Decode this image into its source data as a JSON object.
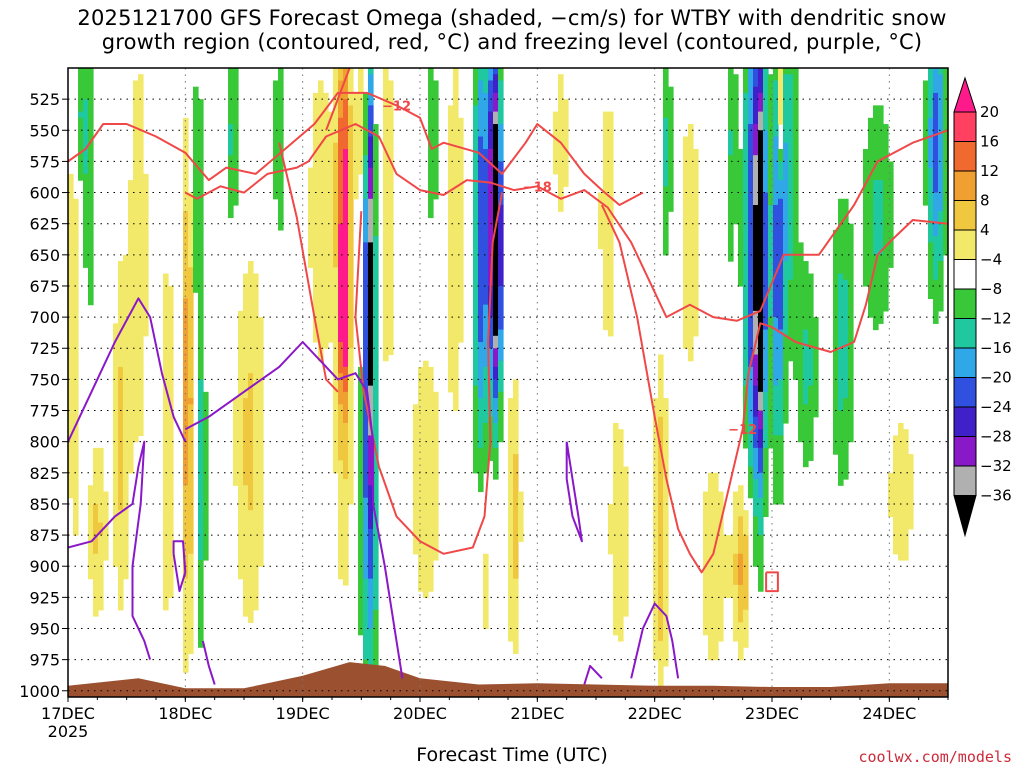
{
  "chart_data": {
    "type": "heatmap",
    "title_line1": "2025121700 GFS Forecast Omega (shaded, −cm/s) for WTBY with dendritic snow",
    "title_line2": "growth region (contoured, red, °C) and freezing level (contoured, purple, °C)",
    "xlabel": "Forecast Time (UTC)",
    "credit": "coolwx.com/models",
    "x_ticks": [
      "17DEC",
      "18DEC",
      "19DEC",
      "20DEC",
      "21DEC",
      "22DEC",
      "23DEC",
      "24DEC"
    ],
    "x_year": "2025",
    "x_range_days": [
      0,
      7.5
    ],
    "y_ticks": [
      525,
      550,
      575,
      600,
      625,
      650,
      675,
      700,
      725,
      750,
      775,
      800,
      825,
      850,
      875,
      900,
      925,
      950,
      975,
      1000
    ],
    "y_range_hpa": [
      500,
      1005
    ],
    "y_ticks_text": [
      "525",
      "550",
      "575",
      "600",
      "625",
      "650",
      "675",
      "700",
      "725",
      "750",
      "775",
      "800",
      "825",
      "850",
      "875",
      "900",
      "925",
      "950",
      "975",
      "1000"
    ],
    "colorbar_labels": [
      "20",
      "16",
      "12",
      "8",
      "4",
      "−4",
      "−8",
      "−12",
      "−16",
      "−20",
      "−24",
      "−28",
      "−32",
      "−36"
    ],
    "colorbar_colors": [
      "#ff4060",
      "#f06a30",
      "#f0a030",
      "#f0c840",
      "#f2e86a",
      "#ffffff",
      "#38c838",
      "#20c8a0",
      "#30a8e8",
      "#3050e0",
      "#4020c8",
      "#8818c8",
      "#b0b0b0",
      "#000000"
    ],
    "colorbar_top_color": "#ff1a8c",
    "omega_levels": [
      -36,
      -32,
      -28,
      -24,
      -20,
      -16,
      -12,
      -8,
      -4,
      4,
      8,
      12,
      16,
      20
    ],
    "omega_colors": [
      "#000000",
      "#b0b0b0",
      "#8818c8",
      "#4020c8",
      "#3050e0",
      "#30a8e8",
      "#20c8a0",
      "#38c838",
      "#ffffff",
      "#f2e86a",
      "#f0c840",
      "#f0a030",
      "#f06a30",
      "#ff4060"
    ],
    "omega_extreme_pos": "#ff1a8c",
    "omega_features": [
      {
        "t": 0.05,
        "p": 690,
        "dt": 0.06,
        "dp": 230,
        "a": 8
      },
      {
        "t": 0.1,
        "p": 540,
        "dt": 0.06,
        "dp": 70,
        "a": -9
      },
      {
        "t": 0.18,
        "p": 600,
        "dt": 0.06,
        "dp": 130,
        "a": -7
      },
      {
        "t": 0.25,
        "p": 870,
        "dt": 0.08,
        "dp": 80,
        "a": 9
      },
      {
        "t": 0.45,
        "p": 800,
        "dt": 0.07,
        "dp": 150,
        "a": 9
      },
      {
        "t": 0.6,
        "p": 650,
        "dt": 0.09,
        "dp": 200,
        "a": 7
      },
      {
        "t": 0.85,
        "p": 800,
        "dt": 0.05,
        "dp": 180,
        "a": 8
      },
      {
        "t": 1.02,
        "p": 760,
        "dt": 0.05,
        "dp": 200,
        "a": 16
      },
      {
        "t": 1.1,
        "p": 600,
        "dt": 0.05,
        "dp": 110,
        "a": -9
      },
      {
        "t": 1.13,
        "p": 830,
        "dt": 0.05,
        "dp": 140,
        "a": -10
      },
      {
        "t": 1.4,
        "p": 560,
        "dt": 0.06,
        "dp": 80,
        "a": -9
      },
      {
        "t": 1.55,
        "p": 800,
        "dt": 0.14,
        "dp": 160,
        "a": 9
      },
      {
        "t": 1.8,
        "p": 560,
        "dt": 0.05,
        "dp": 90,
        "a": -8
      },
      {
        "t": 2.35,
        "p": 560,
        "dt": 0.06,
        "dp": 90,
        "a": 15
      },
      {
        "t": 2.15,
        "p": 620,
        "dt": 0.12,
        "dp": 150,
        "a": 7
      },
      {
        "t": 2.35,
        "p": 730,
        "dt": 0.08,
        "dp": 200,
        "a": 10
      },
      {
        "t": 2.35,
        "p": 690,
        "dt": 0.04,
        "dp": 70,
        "a": 20
      },
      {
        "t": 2.57,
        "p": 660,
        "dt": 0.04,
        "dp": 170,
        "a": -30
      },
      {
        "t": 2.57,
        "p": 850,
        "dt": 0.08,
        "dp": 190,
        "a": -14
      },
      {
        "t": 2.5,
        "p": 550,
        "dt": 0.06,
        "dp": 90,
        "a": 6
      },
      {
        "t": 2.72,
        "p": 620,
        "dt": 0.06,
        "dp": 190,
        "a": 7
      },
      {
        "t": 3.1,
        "p": 560,
        "dt": 0.06,
        "dp": 80,
        "a": -8
      },
      {
        "t": 3.05,
        "p": 830,
        "dt": 0.15,
        "dp": 130,
        "a": 7
      },
      {
        "t": 3.3,
        "p": 630,
        "dt": 0.08,
        "dp": 180,
        "a": 7
      },
      {
        "t": 3.5,
        "p": 600,
        "dt": 0.04,
        "dp": 160,
        "a": -9
      },
      {
        "t": 3.62,
        "p": 600,
        "dt": 0.08,
        "dp": 150,
        "a": -20
      },
      {
        "t": 3.52,
        "p": 690,
        "dt": 0.07,
        "dp": 180,
        "a": -10
      },
      {
        "t": 3.65,
        "p": 640,
        "dt": 0.04,
        "dp": 120,
        "a": -32
      },
      {
        "t": 3.7,
        "p": 560,
        "dt": 0.05,
        "dp": 90,
        "a": 5
      },
      {
        "t": 3.8,
        "p": 860,
        "dt": 0.06,
        "dp": 120,
        "a": 10
      },
      {
        "t": 3.55,
        "p": 910,
        "dt": 0.08,
        "dp": 70,
        "a": 7
      },
      {
        "t": 4.2,
        "p": 560,
        "dt": 0.08,
        "dp": 90,
        "a": 6
      },
      {
        "t": 4.6,
        "p": 620,
        "dt": 0.1,
        "dp": 140,
        "a": 6
      },
      {
        "t": 4.7,
        "p": 880,
        "dt": 0.1,
        "dp": 110,
        "a": 7
      },
      {
        "t": 5.05,
        "p": 870,
        "dt": 0.06,
        "dp": 140,
        "a": 12
      },
      {
        "t": 5.1,
        "p": 570,
        "dt": 0.05,
        "dp": 100,
        "a": -9
      },
      {
        "t": 5.3,
        "p": 640,
        "dt": 0.1,
        "dp": 130,
        "a": 7
      },
      {
        "t": 5.5,
        "p": 900,
        "dt": 0.12,
        "dp": 90,
        "a": 8
      },
      {
        "t": 5.65,
        "p": 560,
        "dt": 0.05,
        "dp": 110,
        "a": -8
      },
      {
        "t": 5.75,
        "p": 900,
        "dt": 0.08,
        "dp": 70,
        "a": 14
      },
      {
        "t": 5.85,
        "p": 640,
        "dt": 0.09,
        "dp": 220,
        "a": -22
      },
      {
        "t": 5.9,
        "p": 660,
        "dt": 0.04,
        "dp": 140,
        "a": -34
      },
      {
        "t": 6.05,
        "p": 660,
        "dt": 0.06,
        "dp": 160,
        "a": -18
      },
      {
        "t": 6.15,
        "p": 580,
        "dt": 0.08,
        "dp": 130,
        "a": -11
      },
      {
        "t": 6.08,
        "p": 530,
        "dt": 0.02,
        "dp": 50,
        "a": 22
      },
      {
        "t": 6.3,
        "p": 740,
        "dt": 0.09,
        "dp": 90,
        "a": -9
      },
      {
        "t": 6.6,
        "p": 720,
        "dt": 0.1,
        "dp": 120,
        "a": -10
      },
      {
        "t": 6.9,
        "p": 620,
        "dt": 0.14,
        "dp": 100,
        "a": -9
      },
      {
        "t": 7.4,
        "p": 560,
        "dt": 0.08,
        "dp": 120,
        "a": -18
      },
      {
        "t": 7.1,
        "p": 840,
        "dt": 0.15,
        "dp": 90,
        "a": 6
      }
    ],
    "terrain_hpa": [
      [
        0,
        996
      ],
      [
        0.6,
        990
      ],
      [
        1.0,
        998
      ],
      [
        1.5,
        998
      ],
      [
        2.0,
        988
      ],
      [
        2.4,
        977
      ],
      [
        2.7,
        980
      ],
      [
        3.0,
        990
      ],
      [
        3.5,
        995
      ],
      [
        4.0,
        994
      ],
      [
        4.5,
        995
      ],
      [
        5.0,
        996
      ],
      [
        5.5,
        996
      ],
      [
        6.0,
        997
      ],
      [
        6.5,
        997
      ],
      [
        7.0,
        994
      ],
      [
        7.5,
        994
      ]
    ],
    "dgz_contours": [
      {
        "label": "−12",
        "points": [
          [
            0.0,
            575
          ],
          [
            0.15,
            565
          ],
          [
            0.3,
            545
          ],
          [
            0.5,
            545
          ],
          [
            0.75,
            555
          ],
          [
            1.0,
            568
          ],
          [
            1.2,
            590
          ],
          [
            1.35,
            580
          ],
          [
            1.6,
            585
          ],
          [
            1.85,
            565
          ],
          [
            2.1,
            545
          ],
          [
            2.3,
            520
          ],
          [
            2.55,
            520
          ],
          [
            2.8,
            530
          ],
          [
            3.0,
            540
          ],
          [
            3.1,
            565
          ],
          [
            3.2,
            560
          ],
          [
            3.5,
            568
          ],
          [
            3.7,
            585
          ],
          [
            3.9,
            560
          ],
          [
            4.0,
            545
          ],
          [
            4.2,
            560
          ],
          [
            4.4,
            585
          ],
          [
            4.55,
            598
          ],
          [
            4.7,
            610
          ],
          [
            4.9,
            600
          ]
        ]
      },
      {
        "label": "−18",
        "points": [
          [
            1.0,
            600
          ],
          [
            1.1,
            605
          ],
          [
            1.3,
            595
          ],
          [
            1.5,
            600
          ],
          [
            1.7,
            585
          ],
          [
            1.95,
            580
          ],
          [
            2.05,
            575
          ],
          [
            2.2,
            555
          ],
          [
            2.45,
            545
          ],
          [
            2.65,
            555
          ],
          [
            2.8,
            585
          ],
          [
            3.0,
            598
          ],
          [
            3.2,
            602
          ],
          [
            3.4,
            590
          ],
          [
            3.6,
            592
          ],
          [
            3.8,
            598
          ],
          [
            4.0,
            595
          ],
          [
            4.2,
            605
          ],
          [
            4.4,
            598
          ],
          [
            4.6,
            612
          ],
          [
            4.8,
            640
          ],
          [
            5.0,
            680
          ],
          [
            5.1,
            700
          ],
          [
            5.3,
            690
          ],
          [
            5.5,
            700
          ],
          [
            5.7,
            703
          ],
          [
            5.9,
            695
          ],
          [
            6.1,
            650
          ],
          [
            6.4,
            650
          ],
          [
            6.7,
            610
          ],
          [
            6.9,
            575
          ],
          [
            7.2,
            560
          ],
          [
            7.5,
            550
          ]
        ]
      },
      {
        "label": "−12",
        "points": [
          [
            7.5,
            625
          ],
          [
            7.2,
            622
          ],
          [
            7.0,
            640
          ],
          [
            6.9,
            650
          ],
          [
            6.8,
            690
          ],
          [
            6.7,
            720
          ],
          [
            6.5,
            728
          ],
          [
            6.2,
            720
          ],
          [
            6.0,
            708
          ],
          [
            5.9,
            705
          ],
          [
            5.8,
            745
          ],
          [
            5.75,
            790
          ],
          [
            5.6,
            850
          ],
          [
            5.5,
            890
          ],
          [
            5.4,
            905
          ],
          [
            5.3,
            890
          ],
          [
            5.2,
            870
          ],
          [
            5.1,
            830
          ],
          [
            5.0,
            780
          ],
          [
            4.85,
            700
          ],
          [
            4.7,
            640
          ],
          [
            4.55,
            610
          ]
        ]
      },
      {
        "label": "",
        "points": [
          [
            2.2,
            550
          ],
          [
            2.32,
            520
          ],
          [
            2.4,
            500
          ]
        ]
      },
      {
        "label": "",
        "points": [
          [
            2.5,
            615
          ],
          [
            2.45,
            700
          ],
          [
            2.52,
            760
          ],
          [
            2.65,
            820
          ],
          [
            2.8,
            860
          ],
          [
            3.0,
            880
          ],
          [
            3.2,
            890
          ],
          [
            3.45,
            885
          ],
          [
            3.55,
            860
          ],
          [
            3.6,
            800
          ],
          [
            3.58,
            720
          ],
          [
            3.62,
            640
          ],
          [
            3.7,
            600
          ]
        ]
      },
      {
        "label": "",
        "points": [
          [
            1.8,
            560
          ],
          [
            1.95,
            620
          ],
          [
            2.1,
            700
          ],
          [
            2.2,
            750
          ],
          [
            2.3,
            760
          ]
        ]
      },
      {
        "label": "",
        "points": [
          [
            5.95,
            905
          ],
          [
            6.05,
            905
          ],
          [
            6.05,
            920
          ],
          [
            5.95,
            920
          ],
          [
            5.95,
            905
          ]
        ]
      }
    ],
    "freezing_contours": [
      {
        "label": "",
        "points": [
          [
            0.0,
            800
          ],
          [
            0.2,
            760
          ],
          [
            0.4,
            720
          ],
          [
            0.6,
            685
          ],
          [
            0.7,
            700
          ],
          [
            0.8,
            745
          ],
          [
            0.9,
            780
          ],
          [
            1.0,
            800
          ]
        ]
      },
      {
        "label": "",
        "points": [
          [
            0.0,
            885
          ],
          [
            0.2,
            880
          ],
          [
            0.4,
            860
          ],
          [
            0.55,
            850
          ],
          [
            0.6,
            820
          ],
          [
            0.65,
            800
          ],
          [
            0.62,
            850
          ],
          [
            0.55,
            900
          ],
          [
            0.55,
            940
          ],
          [
            0.65,
            960
          ],
          [
            0.7,
            975
          ]
        ]
      },
      {
        "label": "",
        "points": [
          [
            1.0,
            790
          ],
          [
            1.2,
            780
          ],
          [
            1.5,
            760
          ],
          [
            1.8,
            740
          ],
          [
            2.0,
            720
          ],
          [
            2.15,
            735
          ],
          [
            2.3,
            750
          ],
          [
            2.45,
            745
          ],
          [
            2.55,
            760
          ],
          [
            2.6,
            800
          ],
          [
            2.6,
            850
          ],
          [
            2.7,
            900
          ],
          [
            2.8,
            960
          ],
          [
            2.85,
            990
          ]
        ]
      },
      {
        "label": "",
        "points": [
          [
            0.9,
            890
          ],
          [
            0.95,
            920
          ],
          [
            1.0,
            905
          ],
          [
            0.98,
            880
          ],
          [
            0.9,
            880
          ],
          [
            0.9,
            890
          ]
        ]
      },
      {
        "label": "",
        "points": [
          [
            1.15,
            960
          ],
          [
            1.2,
            980
          ],
          [
            1.25,
            995
          ]
        ]
      },
      {
        "label": "",
        "points": [
          [
            4.25,
            800
          ],
          [
            4.3,
            830
          ],
          [
            4.35,
            860
          ],
          [
            4.38,
            880
          ],
          [
            4.3,
            860
          ],
          [
            4.25,
            830
          ],
          [
            4.25,
            800
          ]
        ]
      },
      {
        "label": "",
        "points": [
          [
            4.4,
            995
          ],
          [
            4.45,
            980
          ],
          [
            4.55,
            990
          ]
        ]
      },
      {
        "label": "",
        "points": [
          [
            4.8,
            990
          ],
          [
            4.9,
            950
          ],
          [
            5.0,
            930
          ],
          [
            5.1,
            940
          ],
          [
            5.15,
            960
          ],
          [
            5.2,
            990
          ]
        ]
      }
    ]
  }
}
